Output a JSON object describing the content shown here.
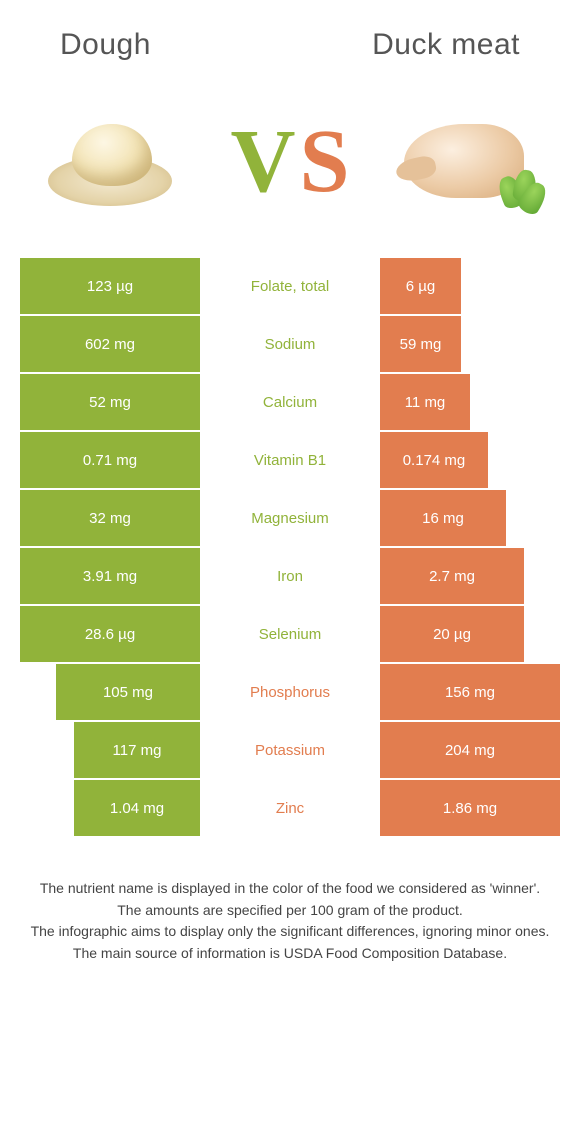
{
  "title_left": "Dough",
  "title_right": "Duck meat",
  "colors": {
    "left": "#91b33a",
    "right": "#e27d4f",
    "vs_v": "#91b33a",
    "vs_s": "#e27d4f",
    "footnote": "#444444",
    "bg": "#ffffff"
  },
  "vs": {
    "v": "V",
    "s": "S"
  },
  "rows": [
    {
      "nutrient": "Folate, total",
      "left": "123 µg",
      "right": "6 µg",
      "winner": "left",
      "left_pct": 100,
      "right_pct": 45
    },
    {
      "nutrient": "Sodium",
      "left": "602 mg",
      "right": "59 mg",
      "winner": "left",
      "left_pct": 100,
      "right_pct": 45
    },
    {
      "nutrient": "Calcium",
      "left": "52 mg",
      "right": "11 mg",
      "winner": "left",
      "left_pct": 100,
      "right_pct": 50
    },
    {
      "nutrient": "Vitamin B1",
      "left": "0.71 mg",
      "right": "0.174 mg",
      "winner": "left",
      "left_pct": 100,
      "right_pct": 60
    },
    {
      "nutrient": "Magnesium",
      "left": "32 mg",
      "right": "16 mg",
      "winner": "left",
      "left_pct": 100,
      "right_pct": 70
    },
    {
      "nutrient": "Iron",
      "left": "3.91 mg",
      "right": "2.7 mg",
      "winner": "left",
      "left_pct": 100,
      "right_pct": 80
    },
    {
      "nutrient": "Selenium",
      "left": "28.6 µg",
      "right": "20 µg",
      "winner": "left",
      "left_pct": 100,
      "right_pct": 80
    },
    {
      "nutrient": "Phosphorus",
      "left": "105 mg",
      "right": "156 mg",
      "winner": "right",
      "left_pct": 80,
      "right_pct": 100
    },
    {
      "nutrient": "Potassium",
      "left": "117 mg",
      "right": "204 mg",
      "winner": "right",
      "left_pct": 70,
      "right_pct": 100
    },
    {
      "nutrient": "Zinc",
      "left": "1.04 mg",
      "right": "1.86 mg",
      "winner": "right",
      "left_pct": 70,
      "right_pct": 100
    }
  ],
  "footnote": [
    "The nutrient name is displayed in the color of the food we considered as 'winner'.",
    "The amounts are specified per 100 gram of the product.",
    "The infographic aims to display only the significant differences, ignoring minor ones.",
    "The main source of information is USDA Food Composition Database."
  ]
}
